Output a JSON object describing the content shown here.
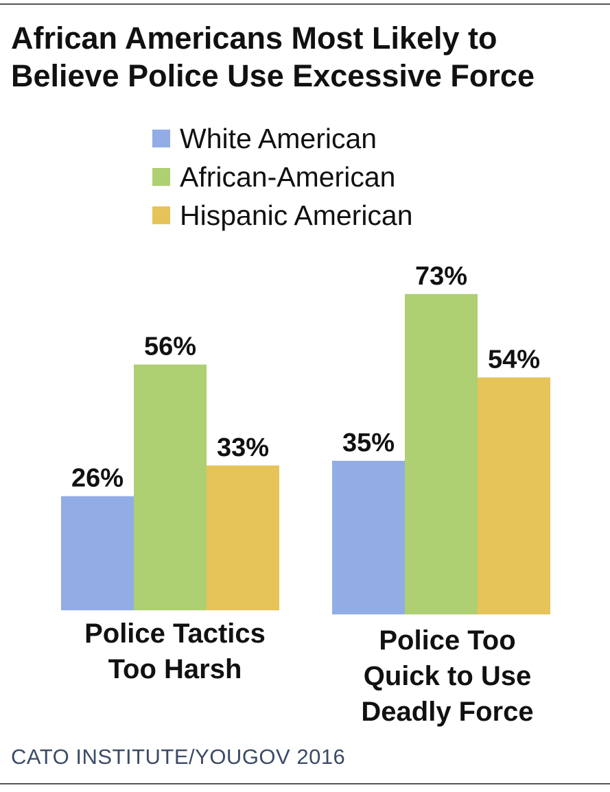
{
  "chart_data": {
    "type": "bar",
    "title": "African Americans Most Likely to Believe Police Use Excessive Force",
    "title_lines": [
      "African Americans Most Likely to",
      "Believe Police Use Excessive Force"
    ],
    "categories": [
      "Police Tactics Too Harsh",
      "Police Too Quick to Use Deadly Force"
    ],
    "category_lines": [
      [
        "Police Tactics",
        "Too Harsh"
      ],
      [
        "Police Too",
        "Quick to Use",
        "Deadly Force"
      ]
    ],
    "series": [
      {
        "name": "White American",
        "values": [
          26,
          35
        ],
        "labels": [
          "26%",
          "35%"
        ],
        "color": "#92ace6"
      },
      {
        "name": "African-American",
        "values": [
          56,
          73
        ],
        "labels": [
          "56%",
          "73%"
        ],
        "color": "#aecf72"
      },
      {
        "name": "Hispanic American",
        "values": [
          33,
          54
        ],
        "labels": [
          "33%",
          "54%"
        ],
        "color": "#e6c45a"
      }
    ],
    "xlabel": "",
    "ylabel": "",
    "ylim": [
      0,
      100
    ],
    "grid": false,
    "legend_position": "top"
  },
  "source": "CATO INSTITUTE/YOUGOV 2016"
}
